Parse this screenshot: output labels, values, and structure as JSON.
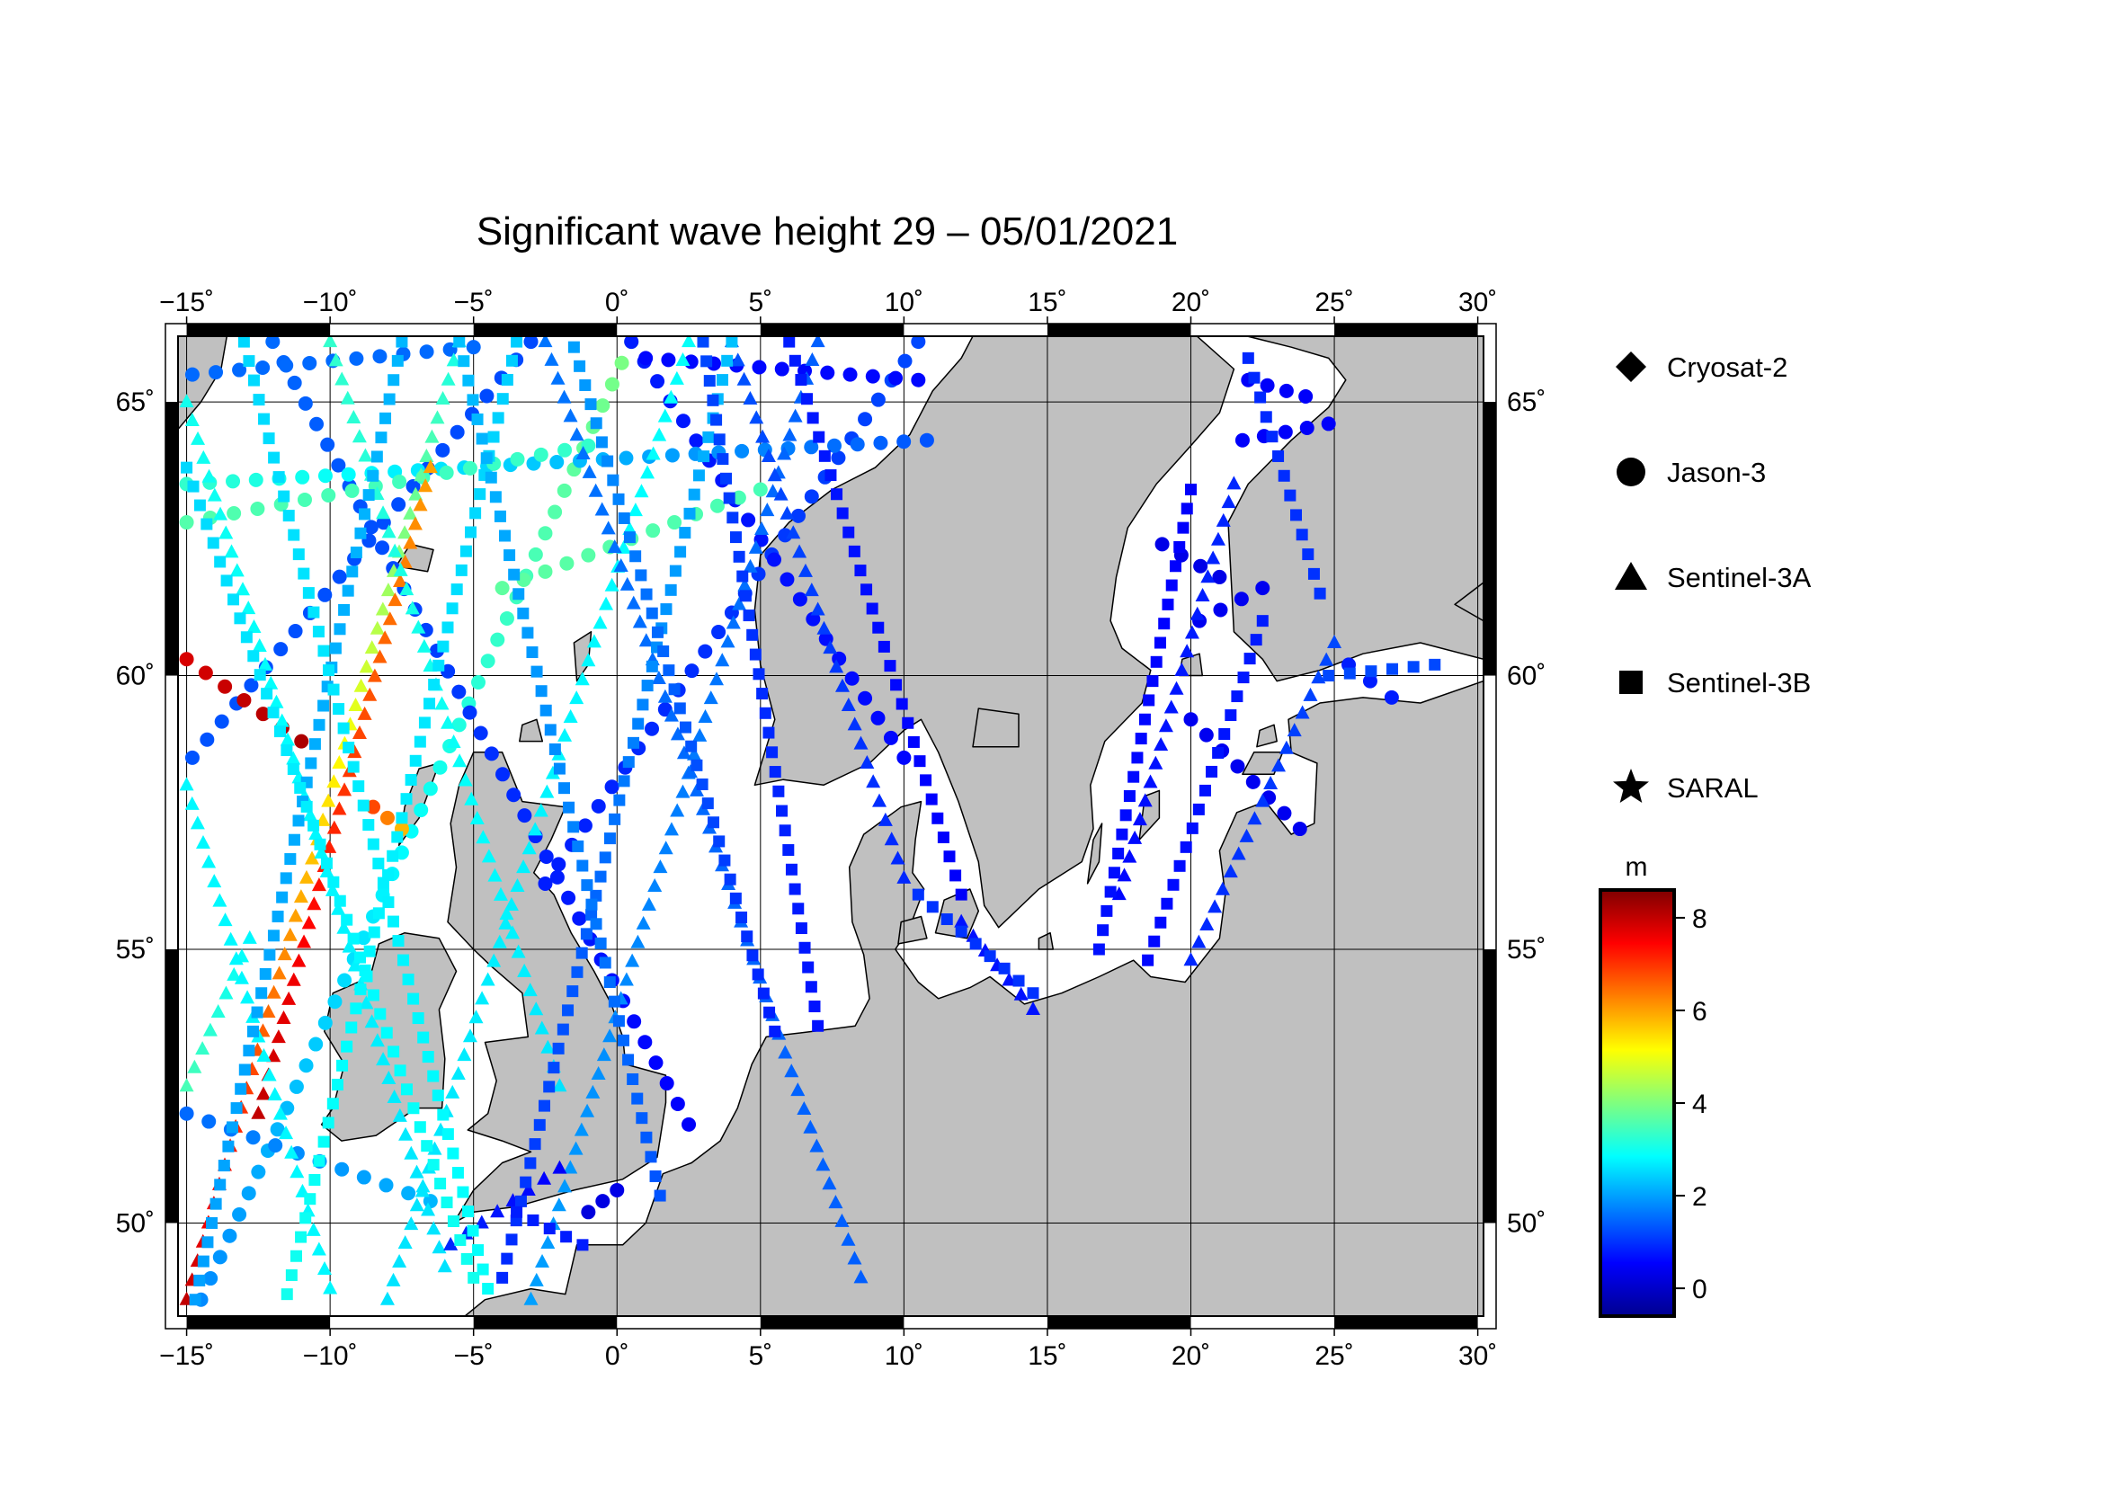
{
  "title": "Significant wave height 29 – 05/01/2021",
  "map": {
    "lon_range": [
      -15.3,
      30.2
    ],
    "lat_range": [
      48.3,
      66.2
    ],
    "lon_ticks": [
      "−15˚",
      "−10˚",
      "−5˚",
      "0˚",
      "5˚",
      "10˚",
      "15˚",
      "20˚",
      "25˚",
      "30˚"
    ],
    "lon_tick_values": [
      -15,
      -10,
      -5,
      0,
      5,
      10,
      15,
      20,
      25,
      30
    ],
    "lat_ticks": [
      "50˚",
      "55˚",
      "60˚",
      "65˚"
    ],
    "lat_tick_values": [
      50,
      55,
      60,
      65
    ],
    "land_color": "#c0c0c0",
    "sea_color": "#ffffff",
    "grid": true
  },
  "legend": {
    "placement": "right",
    "items": [
      {
        "label": "Cryosat-2",
        "symbol": "diamond"
      },
      {
        "label": "Jason-3",
        "symbol": "circle"
      },
      {
        "label": "Sentinel-3A",
        "symbol": "triangle"
      },
      {
        "label": "Sentinel-3B",
        "symbol": "square"
      },
      {
        "label": "SARAL",
        "symbol": "star"
      }
    ]
  },
  "colorbar": {
    "unit": "m",
    "min": -0.6,
    "max": 8.6,
    "ticks": [
      "8",
      "6",
      "4",
      "2",
      "0"
    ],
    "tick_values": [
      8,
      6,
      4,
      2,
      0
    ],
    "colormap": [
      "#00008f",
      "#0000ff",
      "#007fff",
      "#00ffff",
      "#7fff7f",
      "#ffff00",
      "#ff7f00",
      "#ff0000",
      "#7f0000"
    ]
  },
  "chart_data": {
    "type": "scatter",
    "title": "Significant wave height 29 – 05/01/2021",
    "xlabel": "",
    "ylabel": "",
    "xlim": [
      -15.3,
      30.2
    ],
    "ylim": [
      48.3,
      66.2
    ],
    "value_unit": "m",
    "series": [
      {
        "name": "Jason-3",
        "symbol": "circle",
        "tracks": [
          {
            "start": [
              -14.5,
              48.6
            ],
            "end": [
              0.5,
              66.1
            ],
            "hs": [
              1.8,
              4.0
            ]
          },
          {
            "start": [
              -2.5,
              56.2
            ],
            "end": [
              10.5,
              66.1
            ],
            "hs": [
              0.8,
              1.2
            ]
          },
          {
            "start": [
              -14.8,
              58.5
            ],
            "end": [
              -3.0,
              66.1
            ],
            "hs": [
              1.3,
              1.2
            ]
          },
          {
            "start": [
              -12.0,
              66.1
            ],
            "end": [
              2.5,
              51.8
            ],
            "hs": [
              1.5,
              0.5
            ]
          },
          {
            "start": [
              0.5,
              66.1
            ],
            "end": [
              10.0,
              58.5
            ],
            "hs": [
              0.8,
              0.6
            ]
          },
          {
            "start": [
              -15.0,
              63.5
            ],
            "end": [
              10.8,
              64.3
            ],
            "hs": [
              3.3,
              1.3
            ]
          },
          {
            "start": [
              -15.0,
              60.3
            ],
            "end": [
              -11.0,
              58.8
            ],
            "hs": [
              7.8,
              8.2
            ]
          },
          {
            "start": [
              -8.5,
              57.6
            ],
            "end": [
              -7.5,
              57.2
            ],
            "hs": [
              6.8,
              5.8
            ]
          },
          {
            "start": [
              -15.0,
              62.8
            ],
            "end": [
              -1.0,
              64.2
            ],
            "hs": [
              3.6,
              3.3
            ]
          },
          {
            "start": [
              -4.0,
              61.6
            ],
            "end": [
              5.0,
              63.4
            ],
            "hs": [
              3.7,
              3.5
            ]
          },
          {
            "start": [
              -14.8,
              65.5
            ],
            "end": [
              -5.0,
              66.0
            ],
            "hs": [
              1.5,
              1.5
            ]
          },
          {
            "start": [
              1.0,
              65.8
            ],
            "end": [
              10.5,
              65.4
            ],
            "hs": [
              0.6,
              0.6
            ]
          },
          {
            "start": [
              -1.0,
              50.2
            ],
            "end": [
              0.0,
              50.6
            ],
            "hs": [
              0.2,
              0.3
            ]
          },
          {
            "start": [
              -15.0,
              52.0
            ],
            "end": [
              -6.5,
              50.4
            ],
            "hs": [
              1.5,
              2.2
            ]
          },
          {
            "start": [
              20.3,
              61.0
            ],
            "end": [
              22.5,
              61.6
            ],
            "hs": [
              0.4,
              0.4
            ]
          },
          {
            "start": [
              19.0,
              62.4
            ],
            "end": [
              21.0,
              61.8
            ],
            "hs": [
              0.3,
              0.3
            ]
          },
          {
            "start": [
              21.8,
              64.3
            ],
            "end": [
              24.8,
              64.6
            ],
            "hs": [
              0.5,
              0.5
            ]
          },
          {
            "start": [
              22.0,
              65.4
            ],
            "end": [
              24.0,
              65.1
            ],
            "hs": [
              0.5,
              0.5
            ]
          },
          {
            "start": [
              20.0,
              59.2
            ],
            "end": [
              23.8,
              57.2
            ],
            "hs": [
              0.4,
              0.4
            ]
          },
          {
            "start": [
              25.5,
              60.2
            ],
            "end": [
              27.0,
              59.6
            ],
            "hs": [
              0.8,
              0.8
            ]
          }
        ]
      },
      {
        "name": "Sentinel-3A",
        "symbol": "triangle",
        "tracks": [
          {
            "start": [
              -15.0,
              48.6
            ],
            "end": [
              -5.5,
              66.1
            ],
            "hs": [
              8.0,
              3.0
            ]
          },
          {
            "start": [
              -12.5,
              52.0
            ],
            "end": [
              -6.5,
              63.8
            ],
            "hs": [
              8.0,
              6.0
            ]
          },
          {
            "start": [
              -15.0,
              52.5
            ],
            "end": [
              -12.8,
              55.2
            ],
            "hs": [
              3.5,
              2.8
            ]
          },
          {
            "start": [
              -8.0,
              48.6
            ],
            "end": [
              2.5,
              66.1
            ],
            "hs": [
              2.6,
              2.9
            ]
          },
          {
            "start": [
              -3.0,
              48.6
            ],
            "end": [
              7.0,
              66.1
            ],
            "hs": [
              2.0,
              1.4
            ]
          },
          {
            "start": [
              -15.0,
              65.0
            ],
            "end": [
              -6.0,
              49.2
            ],
            "hs": [
              3.0,
              2.6
            ]
          },
          {
            "start": [
              -10.0,
              66.1
            ],
            "end": [
              -2.0,
              52.5
            ],
            "hs": [
              3.3,
              2.6
            ]
          },
          {
            "start": [
              -2.5,
              66.1
            ],
            "end": [
              8.5,
              49.0
            ],
            "hs": [
              1.6,
              1.4
            ]
          },
          {
            "start": [
              4.0,
              66.1
            ],
            "end": [
              10.0,
              56.3
            ],
            "hs": [
              1.3,
              0.9
            ]
          },
          {
            "start": [
              -15.0,
              58.0
            ],
            "end": [
              -10.0,
              48.8
            ],
            "hs": [
              2.8,
              2.8
            ]
          },
          {
            "start": [
              17.5,
              56.0
            ],
            "end": [
              21.5,
              63.5
            ],
            "hs": [
              0.6,
              0.9
            ]
          },
          {
            "start": [
              20.0,
              54.8
            ],
            "end": [
              25.0,
              60.6
            ],
            "hs": [
              0.9,
              1.2
            ]
          },
          {
            "start": [
              -5.8,
              49.6
            ],
            "end": [
              -2.0,
              51.0
            ],
            "hs": [
              0.9,
              0.5
            ]
          },
          {
            "start": [
              12.0,
              55.5
            ],
            "end": [
              14.5,
              53.9
            ],
            "hs": [
              0.7,
              0.7
            ]
          }
        ]
      },
      {
        "name": "Sentinel-3B",
        "symbol": "square",
        "tracks": [
          {
            "start": [
              -14.7,
              48.6
            ],
            "end": [
              -7.5,
              66.1
            ],
            "hs": [
              2.0,
              2.2
            ]
          },
          {
            "start": [
              -11.5,
              48.7
            ],
            "end": [
              -3.5,
              66.1
            ],
            "hs": [
              3.0,
              2.4
            ]
          },
          {
            "start": [
              -4.0,
              49.0
            ],
            "end": [
              4.0,
              66.1
            ],
            "hs": [
              0.9,
              2.3
            ]
          },
          {
            "start": [
              3.0,
              66.1
            ],
            "end": [
              7.0,
              53.6
            ],
            "hs": [
              1.2,
              0.7
            ]
          },
          {
            "start": [
              6.0,
              66.1
            ],
            "end": [
              12.0,
              56.0
            ],
            "hs": [
              0.8,
              0.5
            ]
          },
          {
            "start": [
              -13.0,
              66.1
            ],
            "end": [
              -4.5,
              48.8
            ],
            "hs": [
              2.5,
              2.9
            ]
          },
          {
            "start": [
              -5.5,
              66.1
            ],
            "end": [
              1.5,
              50.5
            ],
            "hs": [
              2.3,
              1.3
            ]
          },
          {
            "start": [
              -1.5,
              66.0
            ],
            "end": [
              5.5,
              53.5
            ],
            "hs": [
              2.0,
              0.8
            ]
          },
          {
            "start": [
              -15.0,
              63.8
            ],
            "end": [
              -5.0,
              49.0
            ],
            "hs": [
              2.5,
              3.0
            ]
          },
          {
            "start": [
              16.8,
              55.0
            ],
            "end": [
              20.0,
              63.4
            ],
            "hs": [
              0.7,
              0.5
            ]
          },
          {
            "start": [
              18.5,
              54.8
            ],
            "end": [
              22.5,
              61.0
            ],
            "hs": [
              0.6,
              0.8
            ]
          },
          {
            "start": [
              22.0,
              65.8
            ],
            "end": [
              24.5,
              61.5
            ],
            "hs": [
              0.9,
              1.0
            ]
          },
          {
            "start": [
              24.8,
              60.0
            ],
            "end": [
              28.5,
              60.2
            ],
            "hs": [
              1.2,
              1.2
            ]
          },
          {
            "start": [
              10.5,
              56.0
            ],
            "end": [
              14.5,
              54.2
            ],
            "hs": [
              1.0,
              1.0
            ]
          },
          {
            "start": [
              -3.5,
              50.2
            ],
            "end": [
              -1.2,
              49.6
            ],
            "hs": [
              0.8,
              0.8
            ]
          }
        ]
      }
    ]
  }
}
